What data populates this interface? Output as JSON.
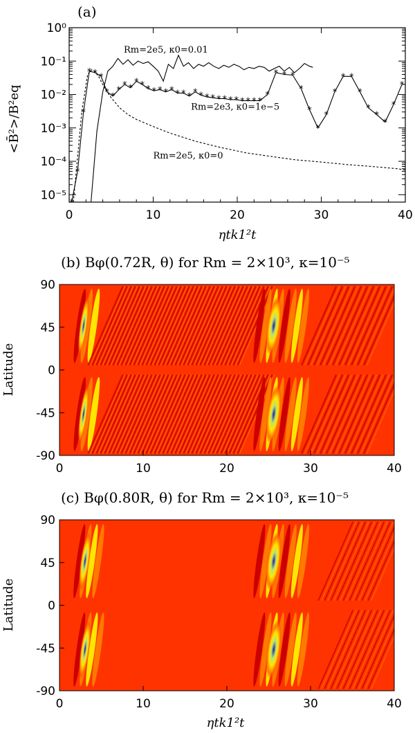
{
  "colors": {
    "heat_background": "#ff3300",
    "heat_dark_red": "#cc0000",
    "heat_orange": "#ff7a00",
    "heat_yellow": "#ffe600",
    "heat_green": "#b8e07a",
    "heat_blue": "#1a1aa0",
    "line": "#000000"
  },
  "chart_data": [
    {
      "type": "line",
      "title": "(a)",
      "ylabel": "<B̄²>/B²eq",
      "xlabel": "ηtk1²t",
      "ylog": true,
      "xlim": [
        0,
        40
      ],
      "ylim": [
        6e-06,
        1
      ],
      "x_ticks": [
        "0",
        "10",
        "20",
        "30",
        "40"
      ],
      "y_ticks": [
        "10⁻⁵",
        "10⁻⁴",
        "10⁻³",
        "10⁻²",
        "10⁻¹",
        "10⁰"
      ],
      "annotations": [
        {
          "text": "Rm=2e5, κ0=0.01",
          "x": 6.5,
          "y": 0.18
        },
        {
          "text": "Rm=2e3, κ0=1e−5",
          "x": 14.5,
          "y": 0.0035
        },
        {
          "text": "Rm=2e5, κ0=0",
          "x": 10.0,
          "y": 0.00012
        }
      ],
      "series": [
        {
          "style": "solid",
          "x": [
            2.6,
            3.3,
            4.0,
            4.6,
            5.2,
            5.8,
            6.4,
            7.0,
            7.6,
            8.2,
            8.8,
            9.4,
            10.0,
            10.6,
            11.2,
            11.8,
            12.4,
            13.0,
            13.6,
            14.2,
            14.8,
            15.4,
            16.0,
            16.6,
            17.2,
            17.8,
            18.4,
            19.0,
            19.6,
            20.2,
            20.8,
            21.4,
            22.0,
            22.6,
            23.2,
            23.8,
            24.4,
            25.0,
            25.6,
            26.2,
            26.8,
            27.4,
            28.0,
            28.6,
            29.0
          ],
          "y": [
            6e-06,
            0.0008,
            0.012,
            0.05,
            0.07,
            0.12,
            0.08,
            0.11,
            0.075,
            0.1,
            0.085,
            0.095,
            0.07,
            0.05,
            0.025,
            0.08,
            0.06,
            0.15,
            0.07,
            0.09,
            0.06,
            0.08,
            0.07,
            0.09,
            0.07,
            0.06,
            0.075,
            0.065,
            0.08,
            0.07,
            0.055,
            0.065,
            0.06,
            0.07,
            0.065,
            0.05,
            0.06,
            0.07,
            0.05,
            0.065,
            0.045,
            0.06,
            0.085,
            0.07,
            0.065
          ]
        },
        {
          "style": "solid-star",
          "x": [
            0.3,
            1.0,
            1.7,
            2.4,
            3.1,
            3.8,
            4.5,
            5.2,
            5.9,
            6.6,
            7.3,
            8.0,
            8.7,
            9.4,
            10.1,
            10.8,
            11.5,
            12.2,
            12.9,
            13.6,
            14.3,
            15.0,
            15.7,
            16.4,
            17.1,
            17.8,
            18.5,
            19.2,
            19.9,
            20.6,
            21.3,
            22.0,
            22.7,
            23.6,
            24.6,
            25.6,
            26.6,
            27.6,
            28.6,
            29.6,
            30.6,
            31.6,
            32.6,
            33.6,
            34.6,
            35.6,
            36.6,
            37.6,
            38.6,
            39.6
          ],
          "y": [
            6e-06,
            5e-05,
            0.003,
            0.05,
            0.045,
            0.035,
            0.012,
            0.009,
            0.014,
            0.02,
            0.016,
            0.025,
            0.02,
            0.015,
            0.013,
            0.014,
            0.012,
            0.014,
            0.011,
            0.011,
            0.009,
            0.012,
            0.0095,
            0.0085,
            0.008,
            0.0075,
            0.0075,
            0.007,
            0.007,
            0.0065,
            0.0065,
            0.0065,
            0.0065,
            0.01,
            0.045,
            0.04,
            0.038,
            0.015,
            0.0035,
            0.001,
            0.0025,
            0.012,
            0.035,
            0.035,
            0.012,
            0.004,
            0.0025,
            0.0015,
            0.005,
            0.02
          ]
        },
        {
          "style": "dashed",
          "x": [
            0.5,
            1.5,
            2.2,
            2.7,
            3.0,
            3.5,
            4.0,
            4.5,
            5.0,
            6.0,
            7.0,
            8.0,
            10.0,
            12.0,
            15.0,
            18.0,
            21.0,
            24.0,
            27.0,
            30.0,
            33.0,
            36.0,
            39.0,
            40.0
          ],
          "y": [
            6e-06,
            0.003,
            0.04,
            0.055,
            0.05,
            0.035,
            0.02,
            0.012,
            0.008,
            0.004,
            0.0025,
            0.0018,
            0.0011,
            0.0007,
            0.0004,
            0.00026,
            0.00018,
            0.00014,
            0.00011,
            9.5e-05,
            8e-05,
            7e-05,
            6e-05,
            5.5e-05
          ]
        }
      ]
    },
    {
      "type": "heatmap",
      "title": "(b) Bφ(0.72R, θ) for Rm = 2×10³, κ=10⁻⁵",
      "ylabel": "Latitude",
      "xlim": [
        0,
        40
      ],
      "ylim": [
        -90,
        90
      ],
      "x_ticks": [
        "0",
        "10",
        "20",
        "30",
        "40"
      ],
      "y_ticks": [
        "90",
        "45",
        "0",
        "-45",
        "-90"
      ],
      "active_bands": [
        {
          "x_start": 2.0,
          "x_end": 4.5,
          "strength": "strong"
        },
        {
          "x_start": 5.5,
          "x_end": 23.5,
          "strength": "weak-striped"
        },
        {
          "x_start": 23.5,
          "x_end": 29.5,
          "strength": "strong"
        },
        {
          "x_start": 31.0,
          "x_end": 38.5,
          "strength": "moderate"
        }
      ]
    },
    {
      "type": "heatmap",
      "title": "(c) Bφ(0.80R, θ) for Rm = 2×10³, κ=10⁻⁵",
      "ylabel": "Latitude",
      "xlabel": "ηtk1²t",
      "xlim": [
        0,
        40
      ],
      "ylim": [
        -90,
        90
      ],
      "x_ticks": [
        "0",
        "10",
        "20",
        "30",
        "40"
      ],
      "y_ticks": [
        "90",
        "45",
        "0",
        "-45",
        "-90"
      ],
      "active_bands": [
        {
          "x_start": 2.0,
          "x_end": 5.0,
          "strength": "strong"
        },
        {
          "x_start": 23.5,
          "x_end": 29.5,
          "strength": "strong"
        },
        {
          "x_start": 33.0,
          "x_end": 39.5,
          "strength": "weak"
        }
      ]
    }
  ]
}
